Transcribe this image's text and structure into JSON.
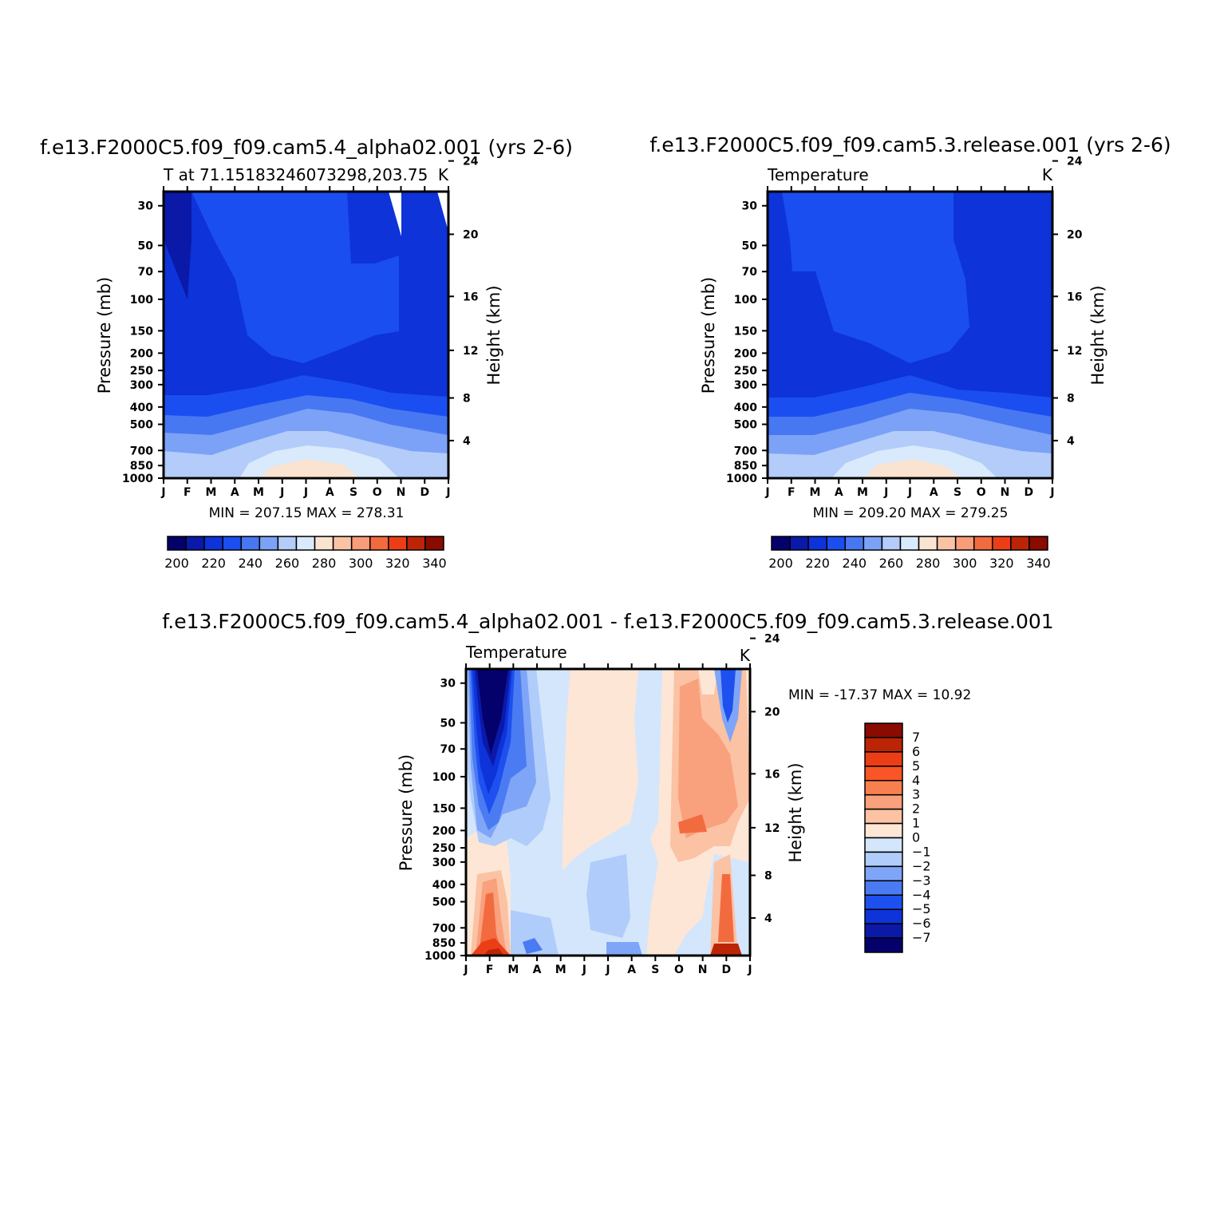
{
  "chart_data": [
    {
      "type": "heatmap",
      "title": "f.e13.F2000C5.f09_f09.cam5.4_alpha02.001 (yrs 2-6)",
      "left_string": "T at 71.15183246073298,203.75",
      "right_string": "K",
      "x_tick_labels": [
        "J",
        "F",
        "M",
        "A",
        "M",
        "J",
        "J",
        "A",
        "S",
        "O",
        "N",
        "D",
        "J"
      ],
      "ylabel": "Pressure (mb)",
      "ylabel_right": "Height (km)",
      "y_ticks": [
        30,
        50,
        70,
        100,
        150,
        200,
        250,
        300,
        400,
        500,
        700,
        850,
        1000
      ],
      "y_right_ticks": [
        24,
        20,
        16,
        12,
        8,
        4
      ],
      "ylim": [
        25,
        1000
      ],
      "y_scale": "log",
      "minmax": "MIN = 207.15 MAX = 278.31",
      "colorbar_labels": [
        "200",
        "220",
        "240",
        "260",
        "280",
        "300",
        "320",
        "340"
      ],
      "colorbar_colors": [
        "#04006c",
        "#0a19a7",
        "#0d33d9",
        "#1a4ef0",
        "#4778f2",
        "#7ca2f7",
        "#b3ccfa",
        "#d8eafc",
        "#fbe3d2",
        "#f9c4a6",
        "#f89c79",
        "#f26b3f",
        "#eb3e16",
        "#bb2505",
        "#8a0b00"
      ],
      "colorbar_position": "bottom",
      "grid": false
    },
    {
      "type": "heatmap",
      "title": "f.e13.F2000C5.f09_f09.cam5.3.release.001 (yrs 2-6)",
      "left_string": "Temperature",
      "right_string": "K",
      "x_tick_labels": [
        "J",
        "F",
        "M",
        "A",
        "M",
        "J",
        "J",
        "A",
        "S",
        "O",
        "N",
        "D",
        "J"
      ],
      "ylabel": "Pressure (mb)",
      "ylabel_right": "Height (km)",
      "y_ticks": [
        30,
        50,
        70,
        100,
        150,
        200,
        250,
        300,
        400,
        500,
        700,
        850,
        1000
      ],
      "y_right_ticks": [
        24,
        20,
        16,
        12,
        8,
        4
      ],
      "ylim": [
        25,
        1000
      ],
      "y_scale": "log",
      "minmax": "MIN = 209.20 MAX = 279.25",
      "colorbar_labels": [
        "200",
        "220",
        "240",
        "260",
        "280",
        "300",
        "320",
        "340"
      ],
      "colorbar_colors": [
        "#04006c",
        "#0a19a7",
        "#0d33d9",
        "#1a4ef0",
        "#4778f2",
        "#7ca2f7",
        "#b3ccfa",
        "#d8eafc",
        "#fbe3d2",
        "#f9c4a6",
        "#f89c79",
        "#f26b3f",
        "#eb3e16",
        "#bb2505",
        "#8a0b00"
      ],
      "colorbar_position": "bottom",
      "grid": false
    },
    {
      "type": "heatmap",
      "title": "f.e13.F2000C5.f09_f09.cam5.4_alpha02.001 - f.e13.F2000C5.f09_f09.cam5.3.release.001",
      "left_string": "Temperature",
      "right_string": "K",
      "x_tick_labels": [
        "J",
        "F",
        "M",
        "A",
        "M",
        "J",
        "J",
        "A",
        "S",
        "O",
        "N",
        "D",
        "J"
      ],
      "ylabel": "Pressure (mb)",
      "ylabel_right": "Height (km)",
      "y_ticks": [
        30,
        50,
        70,
        100,
        150,
        200,
        250,
        300,
        400,
        500,
        700,
        850,
        1000
      ],
      "y_right_ticks": [
        24,
        20,
        16,
        12,
        8,
        4
      ],
      "ylim": [
        25,
        1000
      ],
      "y_scale": "log",
      "minmax": "MIN = -17.37 MAX = 10.92",
      "colorbar_labels": [
        "7",
        "6",
        "5",
        "4",
        "3",
        "2",
        "1",
        "0",
        "-1",
        "-2",
        "-3",
        "-4",
        "-5",
        "-6",
        "-7"
      ],
      "colorbar_colors": [
        "#8a0b00",
        "#bb2505",
        "#eb3e16",
        "#fa5527",
        "#f8804f",
        "#f9a07d",
        "#fbc2a3",
        "#fde6d6",
        "#d4e6fc",
        "#b0ccfa",
        "#7ea5f7",
        "#4b7bf2",
        "#1e50ef",
        "#0d33d9",
        "#0a19a7",
        "#04006c"
      ],
      "colorbar_position": "right",
      "grid": false
    }
  ]
}
